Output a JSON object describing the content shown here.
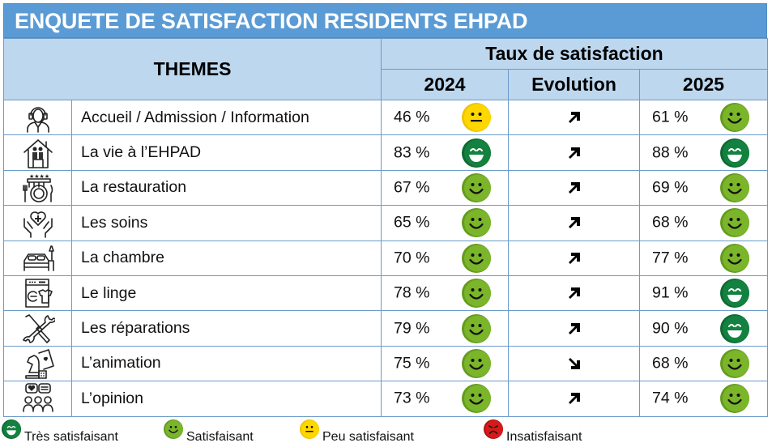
{
  "title": "ENQUETE DE SATISFACTION RESIDENTS EHPAD",
  "header": {
    "themes": "THEMES",
    "taux": "Taux de satisfaction",
    "col_2024": "2024",
    "col_evolution": "Evolution",
    "col_2025": "2025"
  },
  "colors": {
    "title_bg": "#5b9bd5",
    "header_bg": "#bdd7ee",
    "tres_satisfaisant": "#13813f",
    "satisfaisant": "#7ab52a",
    "peu_satisfaisant": "#ffd700",
    "insatisfaisant": "#d61a1a"
  },
  "rows": [
    {
      "icon": "receptionist-headset-icon",
      "theme": "Accueil / Admission / Information",
      "v2024": "46 %",
      "s2024": "peu",
      "evolution": "up",
      "v2025": "61 %",
      "s2025": "satisfait"
    },
    {
      "icon": "house-elderly-couple-icon",
      "theme": "La vie à l’EHPAD",
      "v2024": "83 %",
      "s2024": "tres",
      "evolution": "up",
      "v2025": "88 %",
      "s2025": "tres"
    },
    {
      "icon": "restaurant-plate-icon",
      "theme": "La restauration",
      "v2024": "67 %",
      "s2024": "satisfait",
      "evolution": "up",
      "v2025": "69 %",
      "s2025": "satisfait"
    },
    {
      "icon": "caring-hands-heart-icon",
      "theme": "Les soins",
      "v2024": "65 %",
      "s2024": "satisfait",
      "evolution": "up",
      "v2025": "68 %",
      "s2025": "satisfait"
    },
    {
      "icon": "bed-lamp-icon",
      "theme": "La chambre",
      "v2024": "70 %",
      "s2024": "satisfait",
      "evolution": "up",
      "v2025": "77 %",
      "s2025": "satisfait"
    },
    {
      "icon": "washing-machine-shirt-icon",
      "theme": "Le linge",
      "v2024": "78 %",
      "s2024": "satisfait",
      "evolution": "up",
      "v2025": "91 %",
      "s2025": "tres"
    },
    {
      "icon": "screwdriver-wrench-icon",
      "theme": "Les réparations",
      "v2024": "79 %",
      "s2024": "satisfait",
      "evolution": "up",
      "v2025": "90 %",
      "s2025": "tres"
    },
    {
      "icon": "chess-cards-dice-icon",
      "theme": "L’animation",
      "v2024": "75 %",
      "s2024": "satisfait",
      "evolution": "down",
      "v2025": "68 %",
      "s2025": "satisfait"
    },
    {
      "icon": "group-speech-bubbles-icon",
      "theme": "L’opinion",
      "v2024": "73 %",
      "s2024": "satisfait",
      "evolution": "up",
      "v2025": "74 %",
      "s2025": "satisfait"
    }
  ],
  "legend": [
    {
      "level": "tres",
      "label": "Très satisfaisant"
    },
    {
      "level": "satisfait",
      "label": "Satisfaisant"
    },
    {
      "level": "peu",
      "label": "Peu satisfaisant"
    },
    {
      "level": "insatisfait",
      "label": "Insatisfaisant"
    }
  ]
}
